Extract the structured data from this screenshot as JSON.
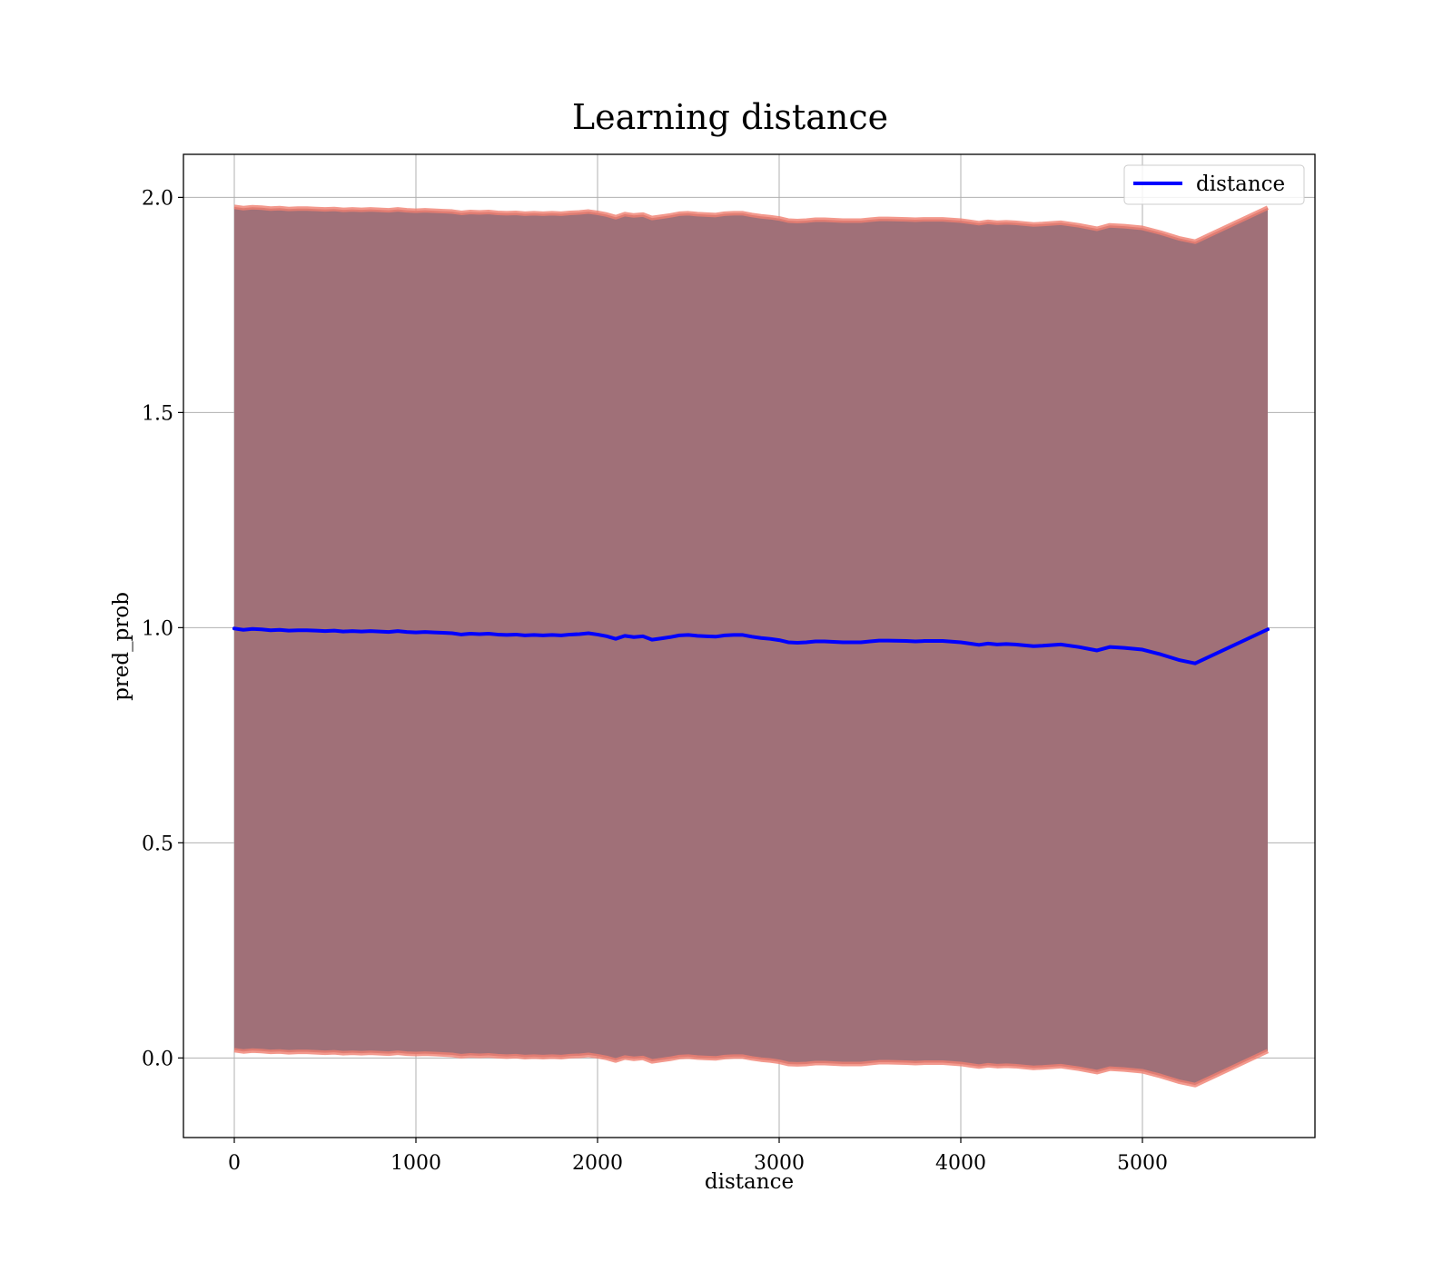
{
  "chart_data": {
    "type": "line",
    "title": "Learning distance",
    "xlabel": "distance",
    "ylabel": "pred_prob",
    "xlim": [
      -280,
      5950
    ],
    "ylim": [
      -0.185,
      2.1
    ],
    "grid": true,
    "legend_placement": "upper right",
    "x_ticks": [
      {
        "value": 0,
        "label": "0"
      },
      {
        "value": 1000,
        "label": "1000"
      },
      {
        "value": 2000,
        "label": "2000"
      },
      {
        "value": 3000,
        "label": "3000"
      },
      {
        "value": 4000,
        "label": "4000"
      },
      {
        "value": 5000,
        "label": "5000"
      }
    ],
    "y_ticks": [
      {
        "value": 0.0,
        "label": "0.0"
      },
      {
        "value": 0.5,
        "label": "0.5"
      },
      {
        "value": 1.0,
        "label": "1.0"
      },
      {
        "value": 1.5,
        "label": "1.5"
      },
      {
        "value": 2.0,
        "label": "2.0"
      }
    ],
    "series": [
      {
        "name": "distance",
        "color": "#0000ff",
        "x": [
          0,
          50,
          100,
          150,
          200,
          250,
          300,
          350,
          400,
          450,
          500,
          550,
          600,
          650,
          700,
          750,
          800,
          850,
          900,
          950,
          1000,
          1050,
          1100,
          1150,
          1200,
          1250,
          1300,
          1350,
          1400,
          1450,
          1500,
          1550,
          1600,
          1650,
          1700,
          1750,
          1800,
          1850,
          1900,
          1950,
          2000,
          2050,
          2100,
          2150,
          2200,
          2250,
          2300,
          2350,
          2400,
          2450,
          2500,
          2550,
          2600,
          2650,
          2700,
          2750,
          2800,
          2850,
          2900,
          2950,
          3000,
          3050,
          3100,
          3150,
          3200,
          3250,
          3300,
          3350,
          3400,
          3450,
          3500,
          3550,
          3600,
          3700,
          3750,
          3800,
          3900,
          4000,
          4050,
          4100,
          4150,
          4200,
          4250,
          4300,
          4400,
          4450,
          4550,
          4650,
          4750,
          4820,
          4900,
          5000,
          5100,
          5200,
          5290,
          5690
        ],
        "values": [
          0.998,
          0.995,
          0.997,
          0.996,
          0.994,
          0.995,
          0.993,
          0.994,
          0.994,
          0.993,
          0.992,
          0.993,
          0.991,
          0.992,
          0.991,
          0.992,
          0.991,
          0.99,
          0.992,
          0.99,
          0.989,
          0.99,
          0.989,
          0.988,
          0.987,
          0.984,
          0.986,
          0.985,
          0.986,
          0.984,
          0.983,
          0.984,
          0.982,
          0.983,
          0.982,
          0.983,
          0.982,
          0.984,
          0.985,
          0.987,
          0.984,
          0.98,
          0.974,
          0.981,
          0.978,
          0.98,
          0.972,
          0.975,
          0.978,
          0.982,
          0.983,
          0.981,
          0.98,
          0.979,
          0.982,
          0.983,
          0.983,
          0.979,
          0.976,
          0.974,
          0.971,
          0.966,
          0.965,
          0.966,
          0.968,
          0.968,
          0.967,
          0.966,
          0.966,
          0.966,
          0.968,
          0.97,
          0.97,
          0.969,
          0.968,
          0.969,
          0.969,
          0.966,
          0.963,
          0.96,
          0.963,
          0.961,
          0.962,
          0.961,
          0.957,
          0.958,
          0.961,
          0.955,
          0.947,
          0.955,
          0.953,
          0.949,
          0.938,
          0.925,
          0.917,
          0.996
        ],
        "band_half_width": [
          0.98,
          0.98,
          0.98,
          0.98,
          0.98,
          0.98,
          0.98,
          0.98,
          0.98,
          0.98,
          0.98,
          0.98,
          0.98,
          0.98,
          0.98,
          0.98,
          0.98,
          0.98,
          0.98,
          0.98,
          0.98,
          0.98,
          0.98,
          0.98,
          0.98,
          0.98,
          0.98,
          0.98,
          0.98,
          0.98,
          0.98,
          0.98,
          0.98,
          0.98,
          0.98,
          0.98,
          0.98,
          0.98,
          0.98,
          0.98,
          0.98,
          0.98,
          0.98,
          0.98,
          0.98,
          0.98,
          0.98,
          0.98,
          0.98,
          0.98,
          0.98,
          0.98,
          0.98,
          0.98,
          0.98,
          0.98,
          0.98,
          0.98,
          0.98,
          0.98,
          0.98,
          0.98,
          0.98,
          0.98,
          0.98,
          0.98,
          0.98,
          0.98,
          0.98,
          0.98,
          0.98,
          0.98,
          0.98,
          0.98,
          0.98,
          0.98,
          0.98,
          0.98,
          0.98,
          0.98,
          0.98,
          0.98,
          0.98,
          0.98,
          0.98,
          0.98,
          0.98,
          0.98,
          0.98,
          0.98,
          0.98,
          0.98,
          0.98,
          0.98,
          0.98,
          0.98
        ],
        "band_colors": {
          "fill": "#a07078",
          "edge": "#f08070"
        }
      }
    ]
  }
}
